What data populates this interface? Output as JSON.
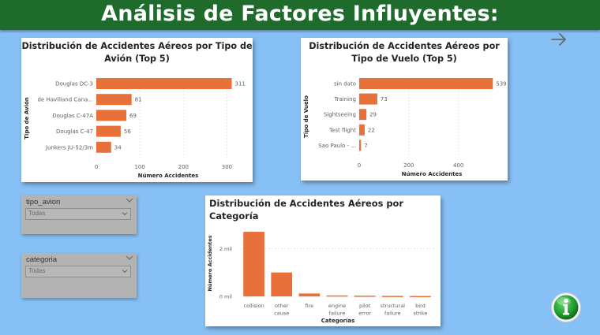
{
  "header": {
    "title": "Análisis de Factores Influyentes:"
  },
  "icons": {
    "nav": "arrow-right-icon",
    "info": "info-icon"
  },
  "colors": {
    "bar": "#e8703a",
    "header": "#1e6b2c",
    "background": "#87c0f5"
  },
  "slicers": [
    {
      "label": "tipo_avion",
      "value": "Todas"
    },
    {
      "label": "categoria",
      "value": "Todas"
    }
  ],
  "chart_data": [
    {
      "type": "bar",
      "orientation": "horizontal",
      "title": "Distribución de Accidentes Aéreos por Tipo de Avión (Top 5)",
      "title_lines": [
        "Distribución de Accidentes Aéreos por Tipo de",
        "Avión (Top 5)"
      ],
      "categories": [
        "Douglas DC-3",
        "de Havilland Cana...",
        "Douglas C-47A",
        "Douglas C-47",
        "Junkers JU-52/3m"
      ],
      "values": [
        311,
        81,
        69,
        56,
        34
      ],
      "value_labels": [
        "311",
        "81",
        "69",
        "56",
        "34"
      ],
      "xlabel": "Número Accidentes",
      "ylabel": "Tipo de Avión",
      "xlim": [
        0,
        330
      ],
      "ticks": [
        0,
        100,
        200,
        300
      ],
      "tick_labels": [
        "0",
        "100",
        "200",
        "300"
      ],
      "grid": true
    },
    {
      "type": "bar",
      "orientation": "horizontal",
      "title": "Distribución de Accidentes Aéreos por Tipo de Vuelo (Top 5)",
      "title_lines": [
        "Distribución de Accidentes Aéreos por",
        "Tipo de Vuelo (Top 5)"
      ],
      "categories": [
        "sin dato",
        "Training",
        "Sightseeing",
        "Test flight",
        "Sao Paulo - ..."
      ],
      "values": [
        539,
        73,
        29,
        22,
        7
      ],
      "value_labels": [
        "539",
        "73",
        "29",
        "22",
        "7"
      ],
      "xlabel": "Número Accidentes",
      "ylabel": "Tipo de Vuelo",
      "xlim": [
        0,
        570
      ],
      "ticks": [
        0,
        200,
        400
      ],
      "tick_labels": [
        "0",
        "200",
        "400"
      ],
      "grid": true
    },
    {
      "type": "bar",
      "orientation": "vertical",
      "title": "Distribución de Accidentes Aéreos por Categoría",
      "title_lines": [
        "Distribución de Accidentes Aéreos por",
        "Categoría"
      ],
      "categories": [
        [
          "collision"
        ],
        [
          "other",
          "cause"
        ],
        [
          "fire"
        ],
        [
          "engine",
          "failure"
        ],
        [
          "pilot",
          "error"
        ],
        [
          "structural",
          "failure"
        ],
        [
          "bird",
          "strike"
        ]
      ],
      "values": [
        2700,
        1000,
        120,
        40,
        30,
        20,
        15
      ],
      "xlabel": "Categorías",
      "ylabel": "Número Accidentes",
      "ylim": [
        0,
        2900
      ],
      "ticks": [
        0,
        2000
      ],
      "tick_labels": [
        "0 mil",
        "2 mil"
      ],
      "grid": true
    }
  ]
}
